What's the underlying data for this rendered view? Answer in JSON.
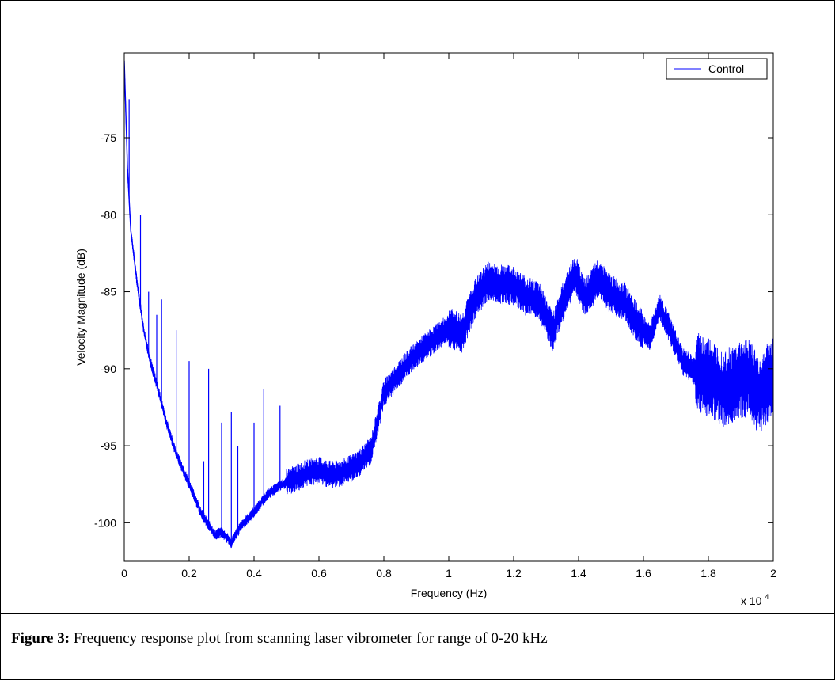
{
  "figure": {
    "caption_label": "Figure 3:",
    "caption_text": "Frequency response plot from scanning laser vibrometer for range of 0-20 kHz"
  },
  "chart_data": {
    "type": "line",
    "xlabel": "Frequency (Hz)",
    "ylabel": "Velocity Magnitude (dB)",
    "x_multiplier_label": "x 10",
    "x_multiplier_exponent": "4",
    "xlim": [
      0,
      2
    ],
    "ylim": [
      -102.5,
      -69.5
    ],
    "x_ticks": [
      0,
      0.2,
      0.4,
      0.6,
      0.8,
      1,
      1.2,
      1.4,
      1.6,
      1.8,
      2
    ],
    "x_tick_labels": [
      "0",
      "0.2",
      "0.4",
      "0.6",
      "0.8",
      "1",
      "1.2",
      "1.4",
      "1.6",
      "1.8",
      "2"
    ],
    "y_ticks": [
      -75,
      -80,
      -85,
      -90,
      -95,
      -100
    ],
    "y_tick_labels": [
      "-75",
      "-80",
      "-85",
      "-90",
      "-95",
      "-100"
    ],
    "grid": false,
    "legend_position": "top-right",
    "series": [
      {
        "name": "Control",
        "color": "#0000ff",
        "x": [
          0.0,
          0.01,
          0.02,
          0.04,
          0.06,
          0.08,
          0.1,
          0.13,
          0.16,
          0.2,
          0.24,
          0.28,
          0.3,
          0.33,
          0.36,
          0.4,
          0.44,
          0.48,
          0.52,
          0.56,
          0.6,
          0.64,
          0.68,
          0.72,
          0.76,
          0.8,
          0.84,
          0.88,
          0.92,
          0.96,
          1.0,
          1.04,
          1.08,
          1.12,
          1.16,
          1.2,
          1.24,
          1.28,
          1.32,
          1.36,
          1.39,
          1.42,
          1.46,
          1.5,
          1.54,
          1.58,
          1.62,
          1.65,
          1.68,
          1.72,
          1.76,
          1.8,
          1.84,
          1.88,
          1.92,
          1.96,
          2.0
        ],
        "y": [
          -70,
          -77,
          -81,
          -84.5,
          -87.5,
          -89.5,
          -91,
          -93.5,
          -95.5,
          -97.5,
          -99.5,
          -100.8,
          -100.6,
          -101.3,
          -100.2,
          -99.3,
          -98.2,
          -97.6,
          -97.2,
          -96.8,
          -96.6,
          -96.9,
          -96.7,
          -96.2,
          -95.3,
          -91.6,
          -90.5,
          -89.5,
          -88.7,
          -88.0,
          -87.3,
          -87.7,
          -85.5,
          -84.3,
          -84.5,
          -84.6,
          -85.3,
          -85.6,
          -87.6,
          -85.2,
          -83.8,
          -85.5,
          -84.1,
          -85.2,
          -85.6,
          -87.0,
          -87.9,
          -86.0,
          -87.4,
          -89.5,
          -90.2,
          -90.5,
          -91.2,
          -91.0,
          -90.5,
          -91.8,
          -90.2
        ]
      }
    ],
    "spikes": [
      {
        "x": 0.015,
        "peak": -72.5
      },
      {
        "x": 0.05,
        "peak": -80.0
      },
      {
        "x": 0.075,
        "peak": -85.0
      },
      {
        "x": 0.1,
        "peak": -86.5
      },
      {
        "x": 0.115,
        "peak": -85.5
      },
      {
        "x": 0.16,
        "peak": -87.5
      },
      {
        "x": 0.2,
        "peak": -89.5
      },
      {
        "x": 0.245,
        "peak": -96.0
      },
      {
        "x": 0.26,
        "peak": -90.0
      },
      {
        "x": 0.3,
        "peak": -93.5
      },
      {
        "x": 0.33,
        "peak": -92.8
      },
      {
        "x": 0.35,
        "peak": -95.0
      },
      {
        "x": 0.4,
        "peak": -93.5
      },
      {
        "x": 0.43,
        "peak": -91.3
      },
      {
        "x": 0.48,
        "peak": -92.4
      }
    ],
    "band": [
      {
        "x_start": 0.5,
        "x_end": 1.0,
        "amp": 0.9
      },
      {
        "x_start": 1.0,
        "x_end": 1.6,
        "amp": 1.3
      },
      {
        "x_start": 1.6,
        "x_end": 1.76,
        "amp": 0.9
      },
      {
        "x_start": 1.76,
        "x_end": 2.0,
        "amp": 2.6
      }
    ]
  }
}
